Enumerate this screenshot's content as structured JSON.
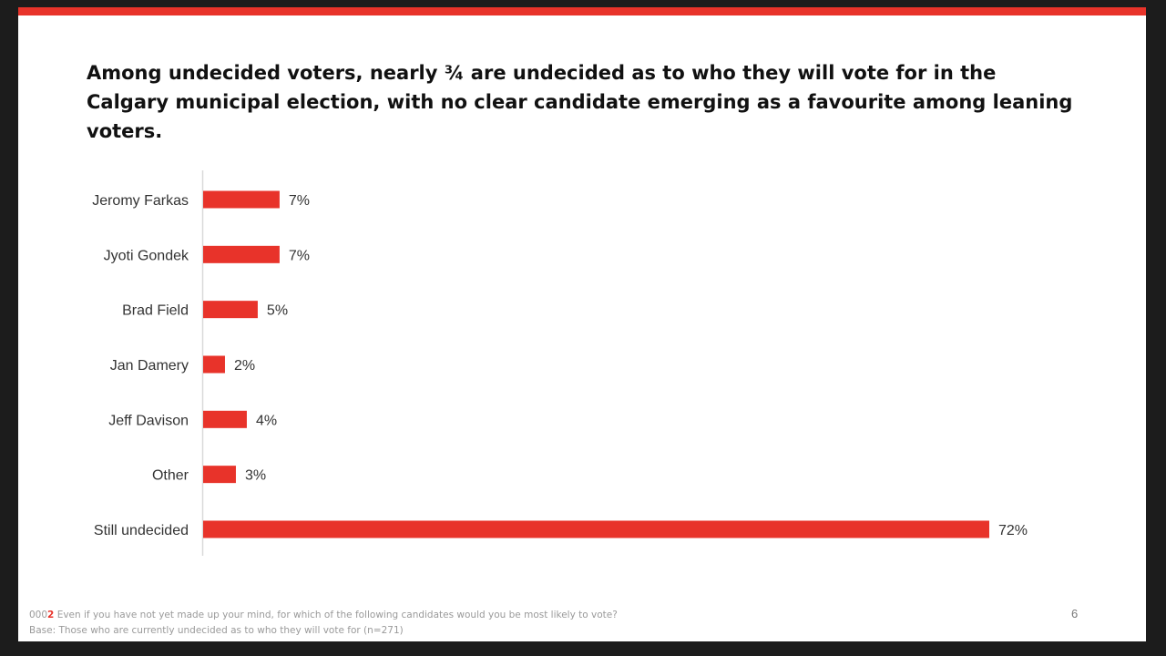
{
  "slide": {
    "title": "Among undecided voters, nearly ¾ are undecided as to who they will vote for in the Calgary municipal election, with no clear candidate emerging as a favourite among leaning voters.",
    "footnote": {
      "question_prefix": "000",
      "question_number": "2",
      "question_text": " Even if you have not yet made up your mind, for which of the following candidates would you be most likely to vote?",
      "base": "Base: Those who are currently undecided as to who they will vote for (n=271)"
    },
    "page_number": "6",
    "accent_color": "#e8332a"
  },
  "chart_data": {
    "type": "bar",
    "orientation": "horizontal",
    "categories": [
      "Jeromy Farkas",
      "Jyoti Gondek",
      "Brad Field",
      "Jan Damery",
      "Jeff Davison",
      "Other",
      "Still undecided"
    ],
    "values": [
      7,
      7,
      5,
      2,
      4,
      3,
      72
    ],
    "value_labels": [
      "7%",
      "7%",
      "5%",
      "2%",
      "4%",
      "3%",
      "72%"
    ],
    "unit": "%",
    "bar_color": "#e8332a",
    "xlim": [
      0,
      72
    ],
    "grid": false,
    "legend": "none"
  }
}
